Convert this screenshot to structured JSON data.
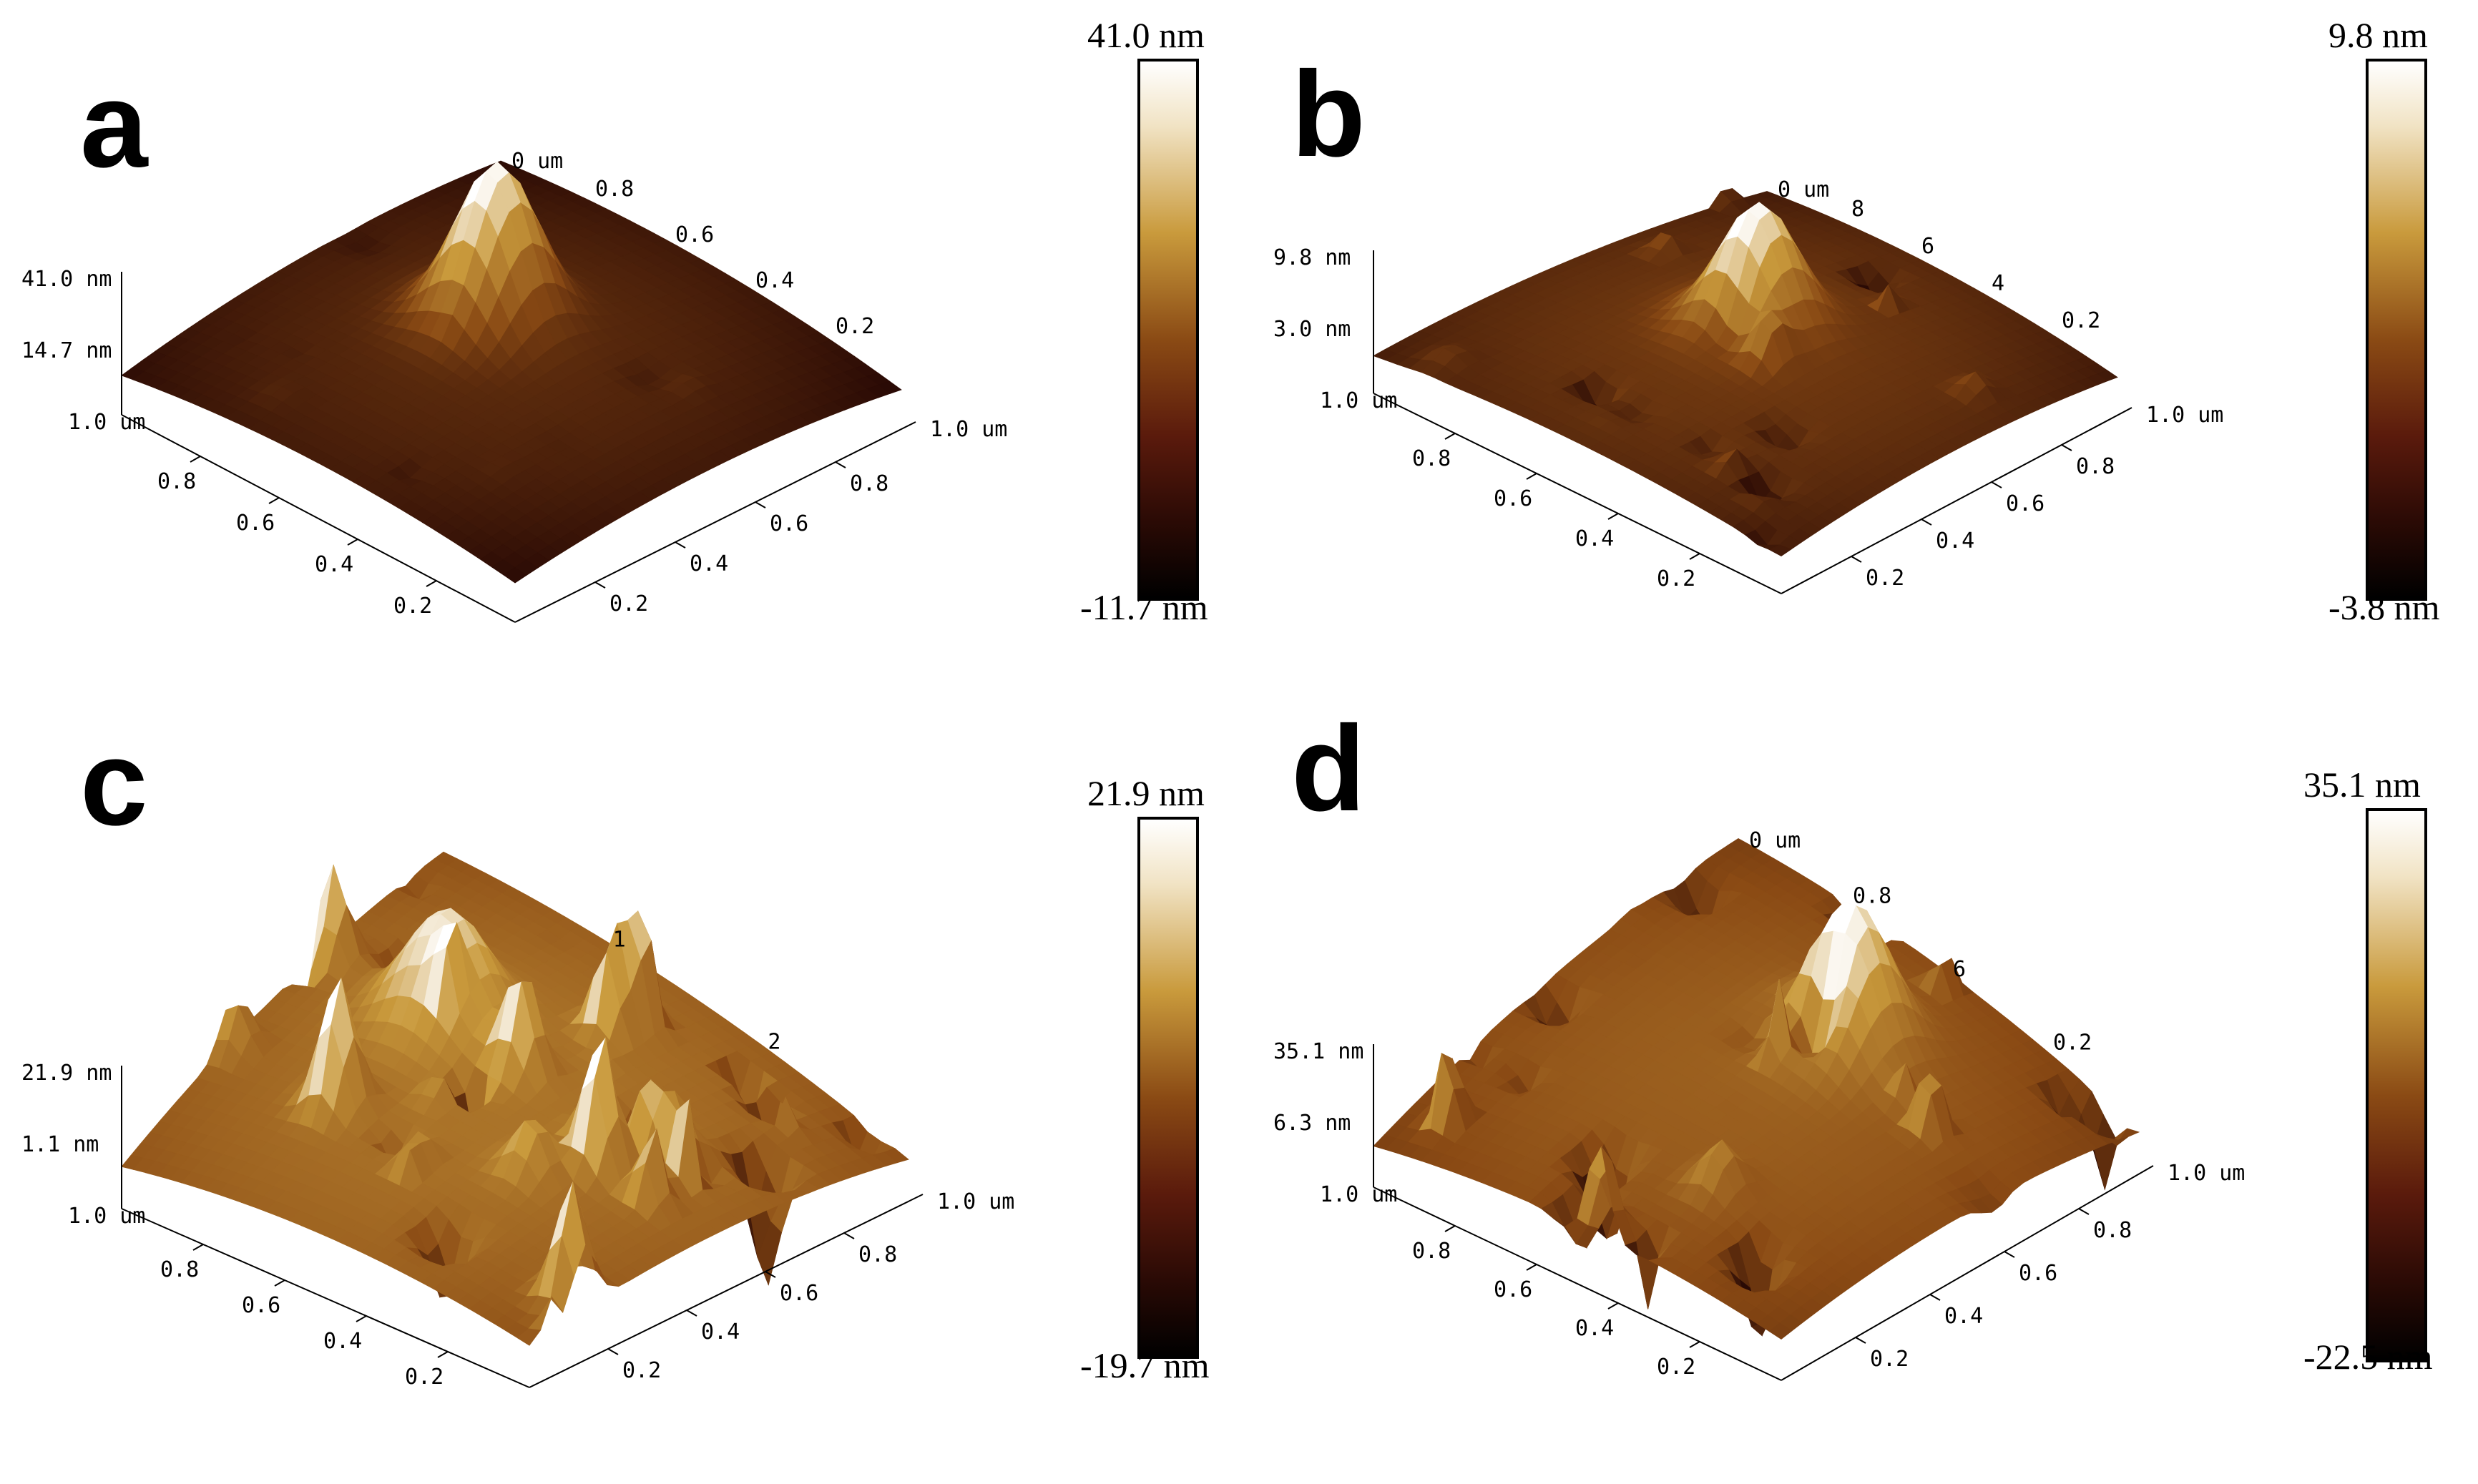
{
  "panels": [
    {
      "letter": "a",
      "z_top": "41.0 nm",
      "z_mid": "14.7 nm",
      "x_label_far": "1.0 um",
      "y_label_near": "1.0 um",
      "corner_label": "1.0 um",
      "back_label": "0 um",
      "x_ticks": [
        "0.2",
        "0.4",
        "0.6",
        "0.8"
      ],
      "y_ticks": [
        "0.2",
        "0.4",
        "0.6",
        "0.8"
      ],
      "back_ticks": [
        "0.8",
        "0.6",
        "0.4",
        "0.2"
      ],
      "colorbar": {
        "max": "41.0 nm",
        "min": "-11.7 nm"
      },
      "roughness": "smooth-single-peak"
    },
    {
      "letter": "b",
      "z_top": "9.8 nm",
      "z_mid": "3.0 nm",
      "x_label_far": "1.0 um",
      "y_label_near": "1.0 um",
      "corner_label": "1.0 um",
      "back_label": "0 um",
      "x_ticks": [
        "0.2",
        "0.4",
        "0.6",
        "0.8"
      ],
      "y_ticks": [
        "0.2",
        "0.4",
        "0.6",
        "0.8"
      ],
      "back_ticks": [
        "8",
        "6",
        "4",
        "0.2"
      ],
      "colorbar": {
        "max": "9.8 nm",
        "min": "-3.8 nm"
      },
      "roughness": "grainy-single-peak"
    },
    {
      "letter": "c",
      "z_top": "21.9 nm",
      "z_mid": "1.1 nm",
      "x_label_far": "1.0 um",
      "y_label_near": "1.0 um",
      "corner_label": "1.0 um",
      "back_label": "",
      "x_ticks": [
        "0.2",
        "0.4",
        "0.6",
        "0.8"
      ],
      "y_ticks": [
        "0.2",
        "0.4",
        "0.6",
        "0.8"
      ],
      "back_ticks": [
        "1",
        "2"
      ],
      "colorbar": {
        "max": "21.9 nm",
        "min": "-19.7 nm"
      },
      "roughness": "very-rough"
    },
    {
      "letter": "d",
      "z_top": "35.1 nm",
      "z_mid": "6.3 nm",
      "x_label_far": "1.0 um",
      "y_label_near": "1.0 um",
      "corner_label": "1.0 um",
      "back_label": "0 um",
      "x_ticks": [
        "0.2",
        "0.4",
        "0.6",
        "0.8"
      ],
      "y_ticks": [
        "0.2",
        "0.4",
        "0.6",
        "0.8"
      ],
      "back_ticks": [
        "0.8",
        "6",
        "0.2"
      ],
      "colorbar": {
        "max": "35.1 nm",
        "min": "-22.5 nm"
      },
      "roughness": "rough-with-spikes"
    }
  ],
  "colors": {
    "high": "#ffffff",
    "gold": "#c99a3c",
    "mid": "#8a4a14",
    "low": "#2a0a05"
  }
}
